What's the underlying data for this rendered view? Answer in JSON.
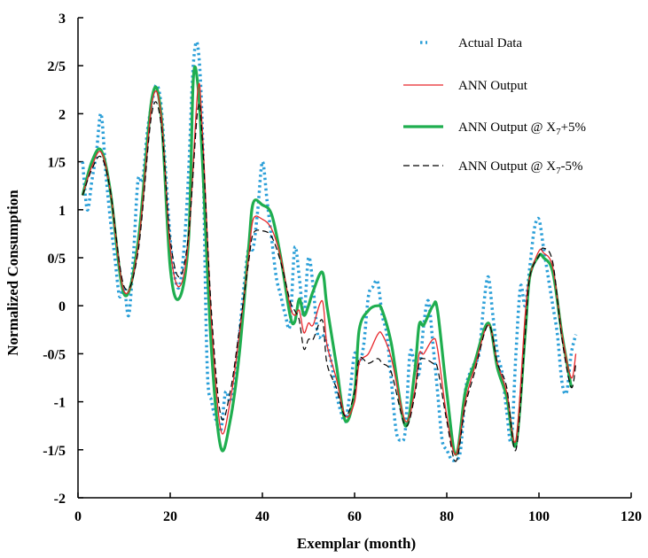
{
  "chart_data": {
    "type": "line",
    "xlabel": "Exemplar (month)",
    "ylabel": "Normalized Consumption",
    "xlim": [
      0,
      120
    ],
    "ylim": [
      -2,
      3
    ],
    "x_ticks": [
      0,
      20,
      40,
      60,
      80,
      100,
      120
    ],
    "x_tick_labels": [
      "0",
      "20",
      "40",
      "60",
      "80",
      "100",
      "120"
    ],
    "y_ticks": [
      -2,
      -1.5,
      -1,
      -0.5,
      0,
      0.5,
      1,
      1.5,
      2,
      2.5,
      3
    ],
    "y_tick_labels": [
      "-2",
      "-1/5",
      "-1",
      "-0/5",
      "0",
      "0/5",
      "1",
      "1/5",
      "2",
      "2/5",
      "3"
    ],
    "grid": false,
    "legend_position": "top-right",
    "colors": {
      "actual": "#2b9fd8",
      "ann": "#e8262b",
      "plus": "#1fae4f",
      "minus": "#000000",
      "axis": "#000000"
    },
    "series": [
      {
        "name": "Actual Data",
        "style": "dotted",
        "x": [
          1,
          2,
          3,
          4,
          5,
          6,
          7,
          8,
          9,
          10,
          11,
          12,
          13,
          14,
          15,
          16,
          17,
          18,
          19,
          20,
          21,
          22,
          23,
          24,
          25,
          26,
          27,
          28,
          29,
          30,
          31,
          32,
          33,
          34,
          35,
          36,
          37,
          38,
          39,
          40,
          41,
          42,
          43,
          44,
          45,
          46,
          47,
          48,
          49,
          50,
          51,
          52,
          53,
          54,
          55,
          56,
          57,
          58,
          59,
          60,
          61,
          62,
          63,
          64,
          65,
          66,
          67,
          68,
          69,
          70,
          71,
          72,
          73,
          74,
          75,
          76,
          77,
          78,
          79,
          80,
          81,
          82,
          83,
          84,
          85,
          86,
          87,
          88,
          89,
          90,
          91,
          92,
          93,
          94,
          95,
          96,
          97,
          98,
          99,
          100,
          101,
          102,
          103,
          104,
          105,
          106,
          107,
          108
        ],
        "y": [
          1.5,
          1.0,
          1.3,
          1.6,
          2.0,
          1.4,
          0.9,
          0.5,
          0.1,
          0.2,
          -0.1,
          0.5,
          1.3,
          1.3,
          1.8,
          2.1,
          2.3,
          2.1,
          1.4,
          0.7,
          0.3,
          0.2,
          0.6,
          1.4,
          2.5,
          2.7,
          1.8,
          -0.6,
          -1.0,
          -1.2,
          -1.3,
          -0.9,
          -1.0,
          -0.8,
          -0.3,
          0.2,
          0.6,
          0.6,
          1.0,
          1.5,
          1.1,
          0.7,
          0.3,
          0.1,
          -0.1,
          -0.2,
          0.6,
          0.3,
          -0.1,
          0.5,
          0.2,
          -0.3,
          -0.3,
          -0.4,
          -0.6,
          -0.9,
          -1.1,
          -1.2,
          -0.9,
          -0.5,
          -0.6,
          -0.4,
          0.1,
          0.2,
          0.25,
          -0.1,
          -0.3,
          -0.8,
          -1.3,
          -1.4,
          -1.3,
          -0.5,
          -0.6,
          -0.7,
          -0.2,
          0.05,
          -0.4,
          -0.9,
          -1.4,
          -1.5,
          -1.6,
          -1.6,
          -1.5,
          -0.9,
          -0.7,
          -0.6,
          -0.5,
          0.0,
          0.3,
          -0.1,
          -0.5,
          -0.7,
          -1.1,
          -1.4,
          -0.5,
          0.2,
          0.0,
          0.4,
          0.8,
          0.9,
          0.6,
          0.3,
          0.0,
          -0.3,
          -0.8,
          -0.9,
          -0.5,
          -0.3
        ]
      },
      {
        "name": "ANN Output",
        "style": "solid-thin",
        "x": [
          1,
          3,
          5,
          7,
          10,
          13,
          16,
          18,
          20,
          22,
          24,
          26,
          27,
          29,
          31,
          33,
          35,
          37,
          38,
          40,
          42,
          44,
          46,
          47,
          48,
          49,
          50,
          51,
          53,
          54,
          56,
          58,
          60,
          61,
          63,
          65,
          66,
          68,
          71,
          73,
          74,
          75,
          77,
          78,
          80,
          82,
          84,
          86,
          89,
          91,
          93,
          95,
          97,
          98,
          100,
          101,
          103,
          105,
          107,
          108
        ],
        "y": [
          1.15,
          1.45,
          1.6,
          1.2,
          0.15,
          0.6,
          2.1,
          2.0,
          0.6,
          0.2,
          0.7,
          2.25,
          1.8,
          -0.2,
          -1.3,
          -1.0,
          -0.3,
          0.5,
          0.9,
          0.9,
          0.8,
          0.5,
          0.0,
          -0.1,
          -0.05,
          -0.28,
          -0.18,
          -0.2,
          0.05,
          -0.4,
          -0.75,
          -1.15,
          -1.0,
          -0.6,
          -0.5,
          -0.3,
          -0.3,
          -0.55,
          -1.2,
          -0.9,
          -0.5,
          -0.5,
          -0.35,
          -0.45,
          -1.15,
          -1.55,
          -1.0,
          -0.65,
          -0.2,
          -0.6,
          -0.9,
          -1.4,
          -0.1,
          0.3,
          0.57,
          0.55,
          0.4,
          -0.3,
          -0.75,
          -0.5
        ]
      },
      {
        "name": "ANN Output @ X₇+5%",
        "style": "solid-thick",
        "x": [
          1,
          3,
          5,
          7,
          10,
          13,
          16,
          18,
          20,
          22,
          24,
          25,
          26,
          27,
          29,
          31,
          33,
          35,
          37,
          38,
          40,
          42,
          44,
          46,
          47,
          48,
          49,
          50,
          51,
          53,
          54,
          56,
          58,
          60,
          61,
          63,
          65,
          66,
          68,
          71,
          73,
          74,
          75,
          77,
          78,
          80,
          82,
          84,
          86,
          89,
          91,
          93,
          95,
          97,
          98,
          100,
          101,
          103,
          105,
          107
        ],
        "y": [
          1.15,
          1.5,
          1.62,
          1.2,
          0.12,
          0.65,
          2.15,
          2.0,
          0.4,
          0.08,
          0.7,
          2.35,
          2.3,
          1.5,
          -0.5,
          -1.48,
          -1.2,
          -0.5,
          0.6,
          1.07,
          1.05,
          0.95,
          0.5,
          -0.1,
          -0.17,
          0.07,
          -0.1,
          0.0,
          0.15,
          0.35,
          0.0,
          -0.6,
          -1.2,
          -0.9,
          -0.25,
          -0.05,
          0.0,
          -0.05,
          -0.4,
          -1.25,
          -0.7,
          -0.2,
          -0.2,
          0.0,
          -0.05,
          -0.9,
          -1.55,
          -0.9,
          -0.6,
          -0.18,
          -0.65,
          -0.95,
          -1.45,
          -0.3,
          0.3,
          0.52,
          0.5,
          0.35,
          -0.3,
          -0.85
        ]
      },
      {
        "name": "ANN Output @ X₇-5%",
        "style": "dashed",
        "x": [
          1,
          3,
          5,
          7,
          10,
          13,
          16,
          18,
          20,
          22,
          24,
          26,
          27,
          29,
          31,
          33,
          35,
          37,
          38,
          40,
          42,
          44,
          46,
          47,
          48,
          49,
          50,
          51,
          53,
          54,
          56,
          58,
          60,
          61,
          63,
          65,
          66,
          68,
          71,
          73,
          74,
          75,
          77,
          78,
          80,
          82,
          84,
          86,
          89,
          91,
          93,
          95,
          97,
          98,
          100,
          101,
          103,
          105,
          107,
          108
        ],
        "y": [
          1.15,
          1.42,
          1.55,
          1.2,
          0.2,
          0.55,
          2.0,
          1.9,
          0.7,
          0.3,
          0.75,
          2.05,
          1.7,
          -0.1,
          -1.15,
          -0.9,
          -0.25,
          0.45,
          0.75,
          0.78,
          0.72,
          0.45,
          0.05,
          -0.05,
          -0.15,
          -0.45,
          -0.35,
          -0.35,
          -0.15,
          -0.6,
          -0.85,
          -1.15,
          -0.9,
          -0.55,
          -0.6,
          -0.55,
          -0.6,
          -0.7,
          -1.25,
          -0.95,
          -0.6,
          -0.55,
          -0.6,
          -0.65,
          -1.2,
          -1.62,
          -1.05,
          -0.7,
          -0.2,
          -0.6,
          -0.85,
          -1.5,
          -0.3,
          0.3,
          0.52,
          0.6,
          0.45,
          -0.35,
          -0.85,
          -0.6
        ]
      }
    ],
    "legend": [
      {
        "key": "actual",
        "text": "Actual Data"
      },
      {
        "key": "ann",
        "text": "ANN Output"
      },
      {
        "key": "plus",
        "text_main": "ANN Output @ X",
        "text_sub": "7",
        "text_tail": "+5%"
      },
      {
        "key": "minus",
        "text_main": "ANN Output @ X",
        "text_sub": "7",
        "text_tail": "-5%"
      }
    ]
  }
}
